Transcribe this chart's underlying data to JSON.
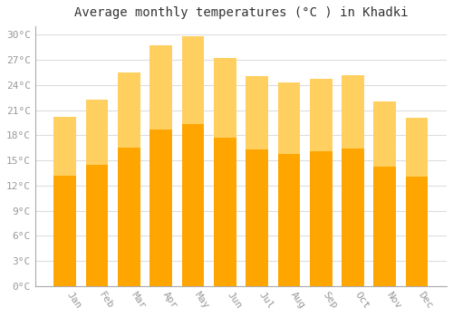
{
  "title": "Average monthly temperatures (°C ) in Khadki",
  "months": [
    "Jan",
    "Feb",
    "Mar",
    "Apr",
    "May",
    "Jun",
    "Jul",
    "Aug",
    "Sep",
    "Oct",
    "Nov",
    "Dec"
  ],
  "temperatures": [
    20.2,
    22.2,
    25.5,
    28.7,
    29.8,
    27.2,
    25.1,
    24.3,
    24.7,
    25.2,
    22.0,
    20.1
  ],
  "bar_color_main": "#FFA500",
  "bar_color_top": "#FFD060",
  "ylim": [
    0,
    31
  ],
  "yticks": [
    0,
    3,
    6,
    9,
    12,
    15,
    18,
    21,
    24,
    27,
    30
  ],
  "ytick_labels": [
    "0°C",
    "3°C",
    "6°C",
    "9°C",
    "12°C",
    "15°C",
    "18°C",
    "21°C",
    "24°C",
    "27°C",
    "30°C"
  ],
  "bg_color": "#FFFFFF",
  "grid_color": "#DDDDDD",
  "title_fontsize": 10,
  "tick_fontsize": 8,
  "font_family": "monospace",
  "tick_color": "#999999",
  "bar_width": 0.7
}
